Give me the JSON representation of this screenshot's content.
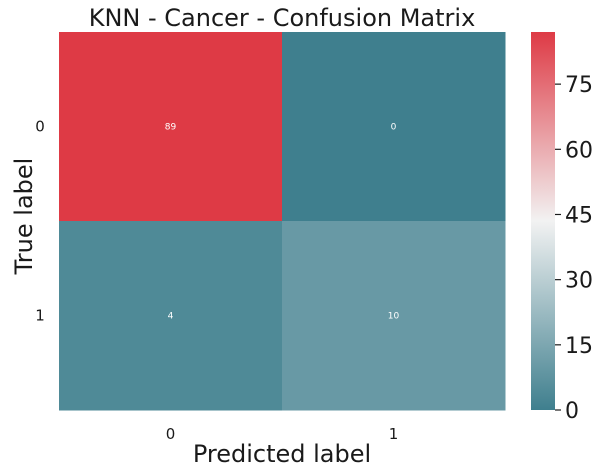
{
  "chart_data": {
    "type": "heatmap",
    "title": "KNN - Cancer - Confusion Matrix",
    "xlabel": "Predicted label",
    "ylabel": "True label",
    "x_categories": [
      "0",
      "1"
    ],
    "y_categories": [
      "0",
      "1"
    ],
    "values": [
      [
        89,
        0
      ],
      [
        4,
        10
      ]
    ],
    "colorbar": {
      "ticks": [
        0,
        15,
        30,
        45,
        60,
        75
      ],
      "vmin": 0,
      "vmax": 87,
      "colors": {
        "low": "#3f7f8e",
        "mid": "#f2f2f2",
        "high": "#de3a45"
      }
    }
  }
}
